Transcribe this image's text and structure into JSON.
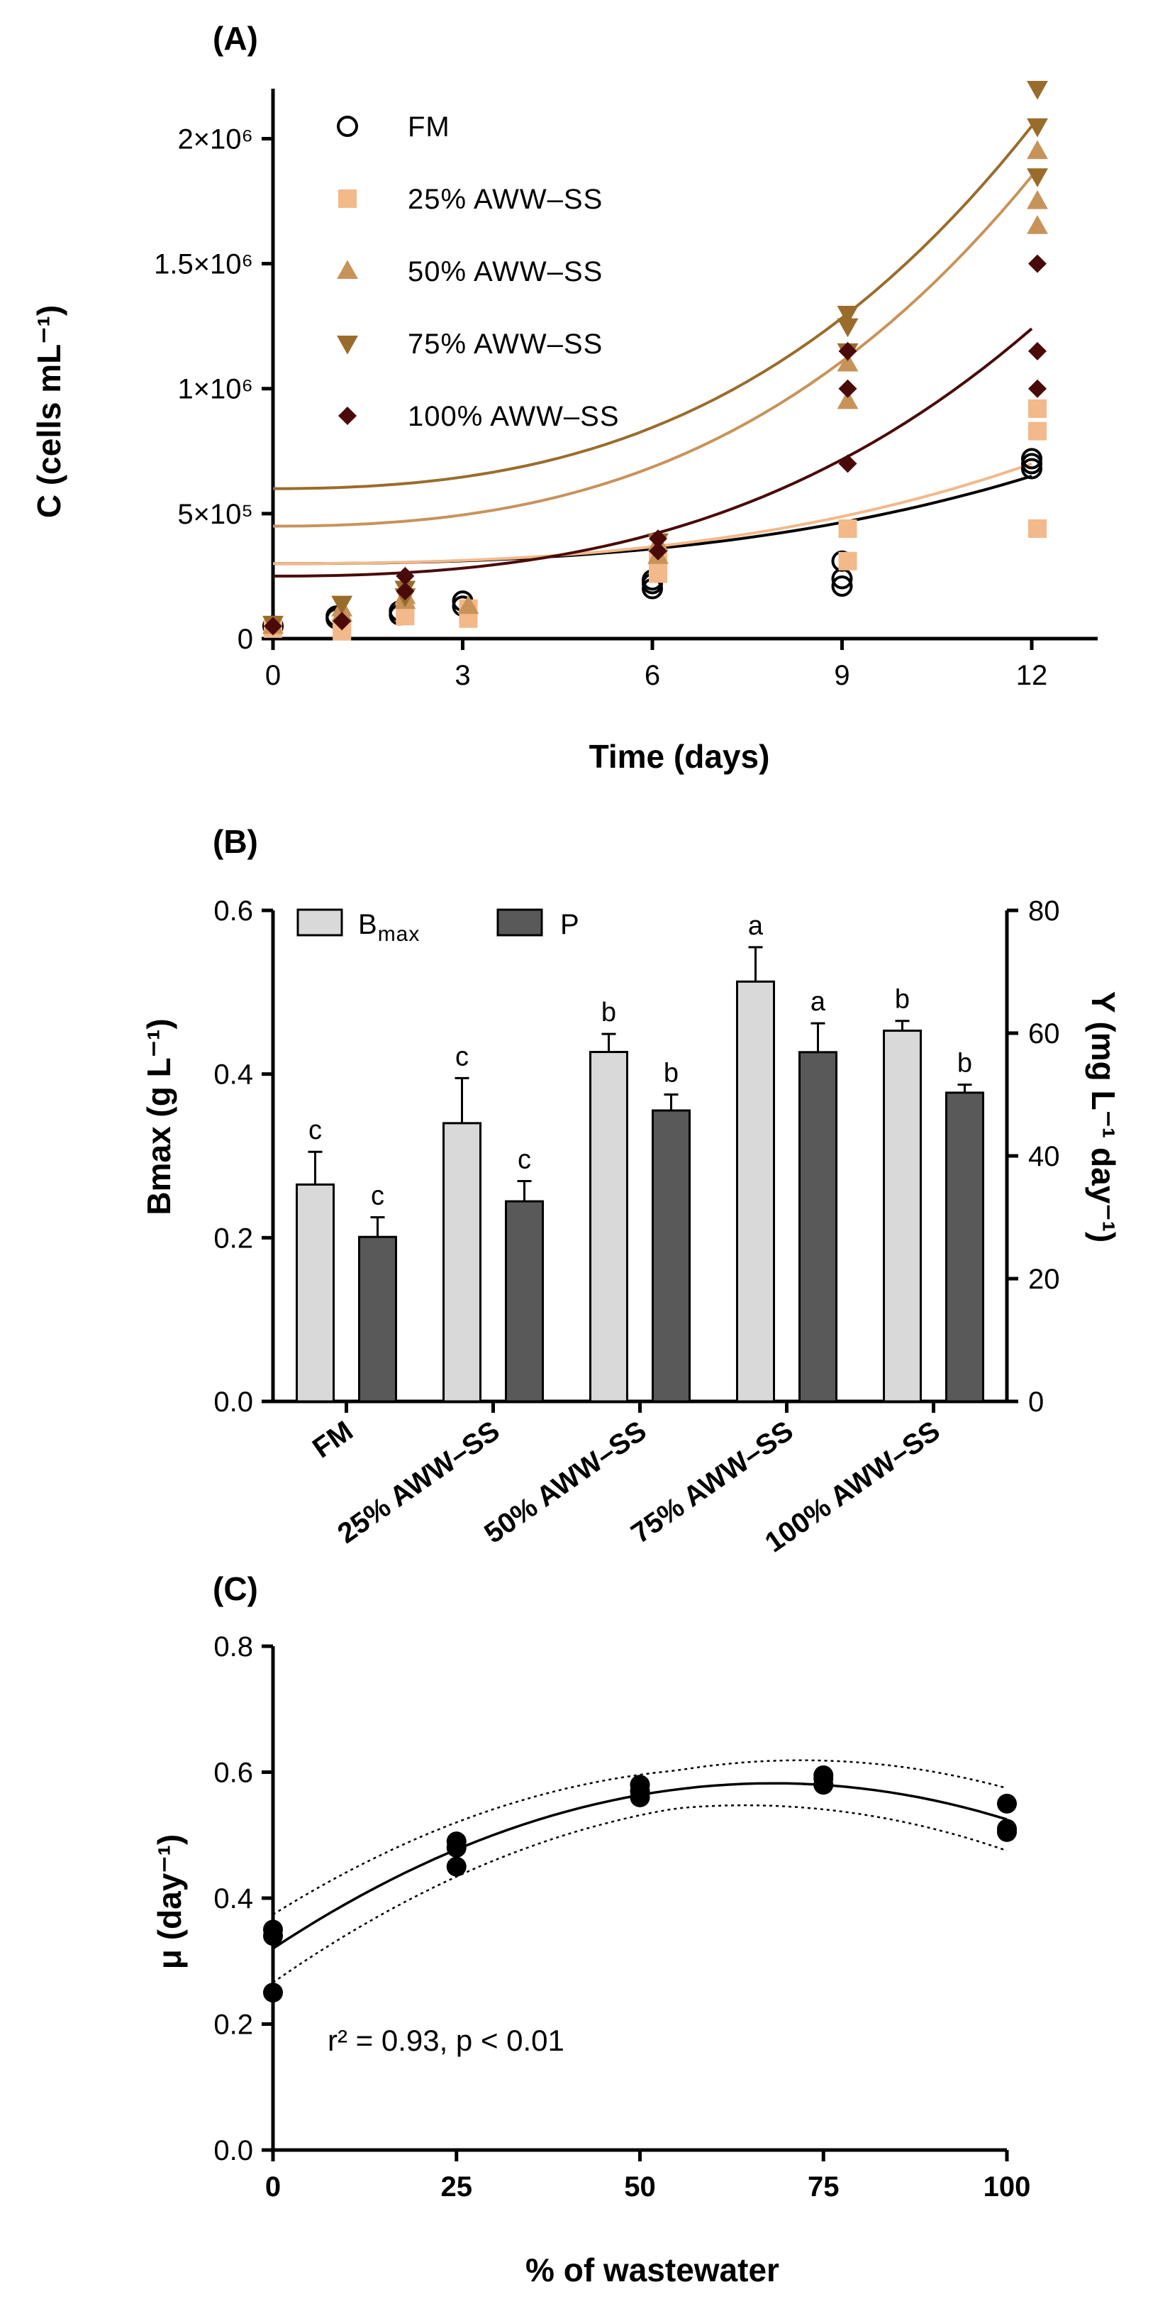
{
  "chart_data": [
    {
      "id": "A",
      "panel_label": "(A)",
      "type": "scatter",
      "xlabel": "Time (days)",
      "ylabel": "C (cells mL⁻¹)",
      "xlim": [
        0,
        13
      ],
      "ylim": [
        0,
        2200000
      ],
      "xticks": [
        0,
        3,
        6,
        9,
        12
      ],
      "xtick_labels": [
        "0",
        "3",
        "6",
        "9",
        "12"
      ],
      "yticks": [
        0,
        500000,
        1000000,
        1500000,
        2000000
      ],
      "ytick_labels": [
        "0",
        "5×10⁵",
        "1×10⁶",
        "1.5×10⁶",
        "2×10⁶"
      ],
      "legend_position": "top-left",
      "series": [
        {
          "name": "FM",
          "marker": "circle-open",
          "color": "#000000",
          "line_color": "#000000",
          "points": [
            [
              0,
              50000
            ],
            [
              1,
              80000
            ],
            [
              1,
              90000
            ],
            [
              2,
              95000
            ],
            [
              2,
              110000
            ],
            [
              3,
              130000
            ],
            [
              3,
              150000
            ],
            [
              6,
              200000
            ],
            [
              6,
              220000
            ],
            [
              6,
              235000
            ],
            [
              9,
              210000
            ],
            [
              9,
              240000
            ],
            [
              9,
              310000
            ],
            [
              12,
              680000
            ],
            [
              12,
              700000
            ],
            [
              12,
              720000
            ]
          ],
          "fit": [
            0.3,
            0.0,
            0.65
          ]
        },
        {
          "name": "25% AWW–SS",
          "marker": "square",
          "color": "#f3b98a",
          "line_color": "#f3b98a",
          "points": [
            [
              0,
              40000
            ],
            [
              1,
              30000
            ],
            [
              1,
              40000
            ],
            [
              2,
              90000
            ],
            [
              2,
              100000
            ],
            [
              3,
              80000
            ],
            [
              3,
              120000
            ],
            [
              6,
              260000
            ],
            [
              6,
              300000
            ],
            [
              6,
              320000
            ],
            [
              9,
              440000
            ],
            [
              9,
              310000
            ],
            [
              12,
              440000
            ],
            [
              12,
              830000
            ],
            [
              12,
              920000
            ]
          ],
          "fit": [
            0.3,
            0.0,
            0.7
          ]
        },
        {
          "name": "50% AWW–SS",
          "marker": "triangle-up",
          "color": "#c8935a",
          "line_color": "#c8935a",
          "points": [
            [
              0,
              50000
            ],
            [
              1,
              100000
            ],
            [
              1,
              120000
            ],
            [
              2,
              150000
            ],
            [
              2,
              170000
            ],
            [
              3,
              130000
            ],
            [
              6,
              330000
            ],
            [
              6,
              380000
            ],
            [
              9,
              950000
            ],
            [
              9,
              1100000
            ],
            [
              12,
              1650000
            ],
            [
              12,
              1750000
            ],
            [
              12,
              1950000
            ]
          ],
          "fit": [
            0.45,
            0.0,
            1.85
          ]
        },
        {
          "name": "75% AWW–SS",
          "marker": "triangle-down",
          "color": "#9a6c2c",
          "line_color": "#9a6c2c",
          "points": [
            [
              0,
              60000
            ],
            [
              1,
              140000
            ],
            [
              2,
              170000
            ],
            [
              2,
              200000
            ],
            [
              6,
              390000
            ],
            [
              9,
              1150000
            ],
            [
              9,
              1250000
            ],
            [
              9,
              1300000
            ],
            [
              12,
              1850000
            ],
            [
              12,
              2050000
            ],
            [
              12,
              2200000
            ]
          ],
          "fit": [
            0.6,
            0.0,
            2.05
          ]
        },
        {
          "name": "100% AWW–SS",
          "marker": "diamond",
          "color": "#4a0a0a",
          "line_color": "#4a0a0a",
          "points": [
            [
              0,
              50000
            ],
            [
              1,
              70000
            ],
            [
              2,
              190000
            ],
            [
              2,
              250000
            ],
            [
              6,
              350000
            ],
            [
              6,
              400000
            ],
            [
              9,
              700000
            ],
            [
              9,
              1000000
            ],
            [
              9,
              1150000
            ],
            [
              12,
              1000000
            ],
            [
              12,
              1150000
            ],
            [
              12,
              1500000
            ]
          ],
          "fit": [
            0.25,
            0.0,
            1.24
          ]
        }
      ]
    },
    {
      "id": "B",
      "panel_label": "(B)",
      "type": "bar",
      "ylabel_left": "Bmax (g L⁻¹)",
      "ylabel_right": "Y (mg L⁻¹ day⁻¹)",
      "ylim_left": [
        0,
        0.6
      ],
      "ylim_right": [
        0,
        80
      ],
      "yticks_left": [
        0.0,
        0.2,
        0.4,
        0.6
      ],
      "ytick_labels_left": [
        "0.0",
        "0.2",
        "0.4",
        "0.6"
      ],
      "yticks_right": [
        0,
        20,
        40,
        60,
        80
      ],
      "ytick_labels_right": [
        "0",
        "20",
        "40",
        "60",
        "80"
      ],
      "legend_position": "top-left",
      "categories": [
        "FM",
        "25% AWW–SS",
        "50% AWW–SS",
        "75% AWW–SS",
        "100% AWW–SS"
      ],
      "series": [
        {
          "name": "Bmax",
          "axis": "left",
          "color": "#d9d9d9",
          "values": [
            0.265,
            0.34,
            0.427,
            0.513,
            0.453
          ],
          "errors": [
            0.04,
            0.055,
            0.022,
            0.042,
            0.012
          ],
          "letters": [
            "c",
            "c",
            "b",
            "a",
            "b"
          ]
        },
        {
          "name": "P",
          "axis": "right",
          "color": "#595959",
          "values": [
            26.8,
            32.6,
            47.4,
            56.9,
            50.3
          ],
          "errors": [
            3.2,
            3.3,
            2.6,
            4.7,
            1.3
          ],
          "letters": [
            "c",
            "c",
            "b",
            "a",
            "b"
          ]
        }
      ]
    },
    {
      "id": "C",
      "panel_label": "(C)",
      "type": "scatter",
      "xlabel": "% of wastewater",
      "ylabel": "μ (day⁻¹)",
      "xlim": [
        0,
        100
      ],
      "ylim": [
        0,
        0.8
      ],
      "xticks": [
        0,
        25,
        50,
        75,
        100
      ],
      "xtick_labels": [
        "0",
        "25",
        "50",
        "75",
        "100"
      ],
      "yticks": [
        0.0,
        0.2,
        0.4,
        0.6,
        0.8
      ],
      "ytick_labels": [
        "0.0",
        "0.2",
        "0.4",
        "0.6",
        "0.8"
      ],
      "annotation": "r² = 0.93, p < 0.01",
      "points": [
        [
          0,
          0.25
        ],
        [
          0,
          0.34
        ],
        [
          0,
          0.35
        ],
        [
          25,
          0.45
        ],
        [
          25,
          0.48
        ],
        [
          25,
          0.49
        ],
        [
          50,
          0.56
        ],
        [
          50,
          0.57
        ],
        [
          50,
          0.58
        ],
        [
          75,
          0.58
        ],
        [
          75,
          0.59
        ],
        [
          75,
          0.595
        ],
        [
          100,
          0.51
        ],
        [
          100,
          0.505
        ],
        [
          100,
          0.55
        ]
      ],
      "fit": {
        "a": 0.32,
        "b": 0.0077,
        "c": -5.65e-05,
        "ci_half_width": 0.03
      }
    }
  ]
}
